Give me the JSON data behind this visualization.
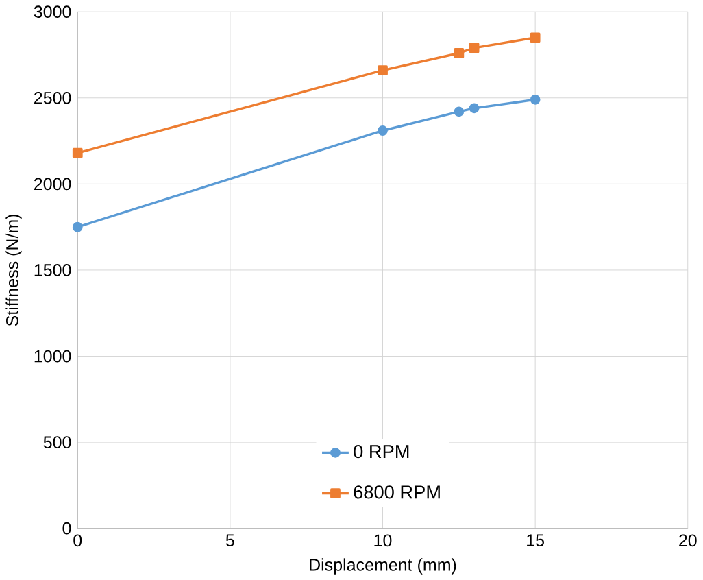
{
  "chart_data": {
    "type": "line",
    "xlabel": "Displacement (mm)",
    "ylabel": "Stiffness (N/m)",
    "x": [
      0,
      10,
      12.5,
      13,
      15
    ],
    "series": [
      {
        "name": "0 RPM",
        "color": "#5b9bd5",
        "marker": "circle",
        "values": [
          1750,
          2310,
          2420,
          2440,
          2490
        ]
      },
      {
        "name": "6800 RPM",
        "color": "#ed7d31",
        "marker": "square",
        "values": [
          2180,
          2660,
          2760,
          2790,
          2850
        ]
      }
    ],
    "xlim": [
      0,
      20
    ],
    "xticks": [
      0,
      5,
      10,
      15,
      20
    ],
    "ylim": [
      0,
      3000
    ],
    "yticks": [
      0,
      500,
      1000,
      1500,
      2000,
      2500,
      3000
    ],
    "grid": true,
    "legend": "bottom",
    "line_style": "solid"
  }
}
